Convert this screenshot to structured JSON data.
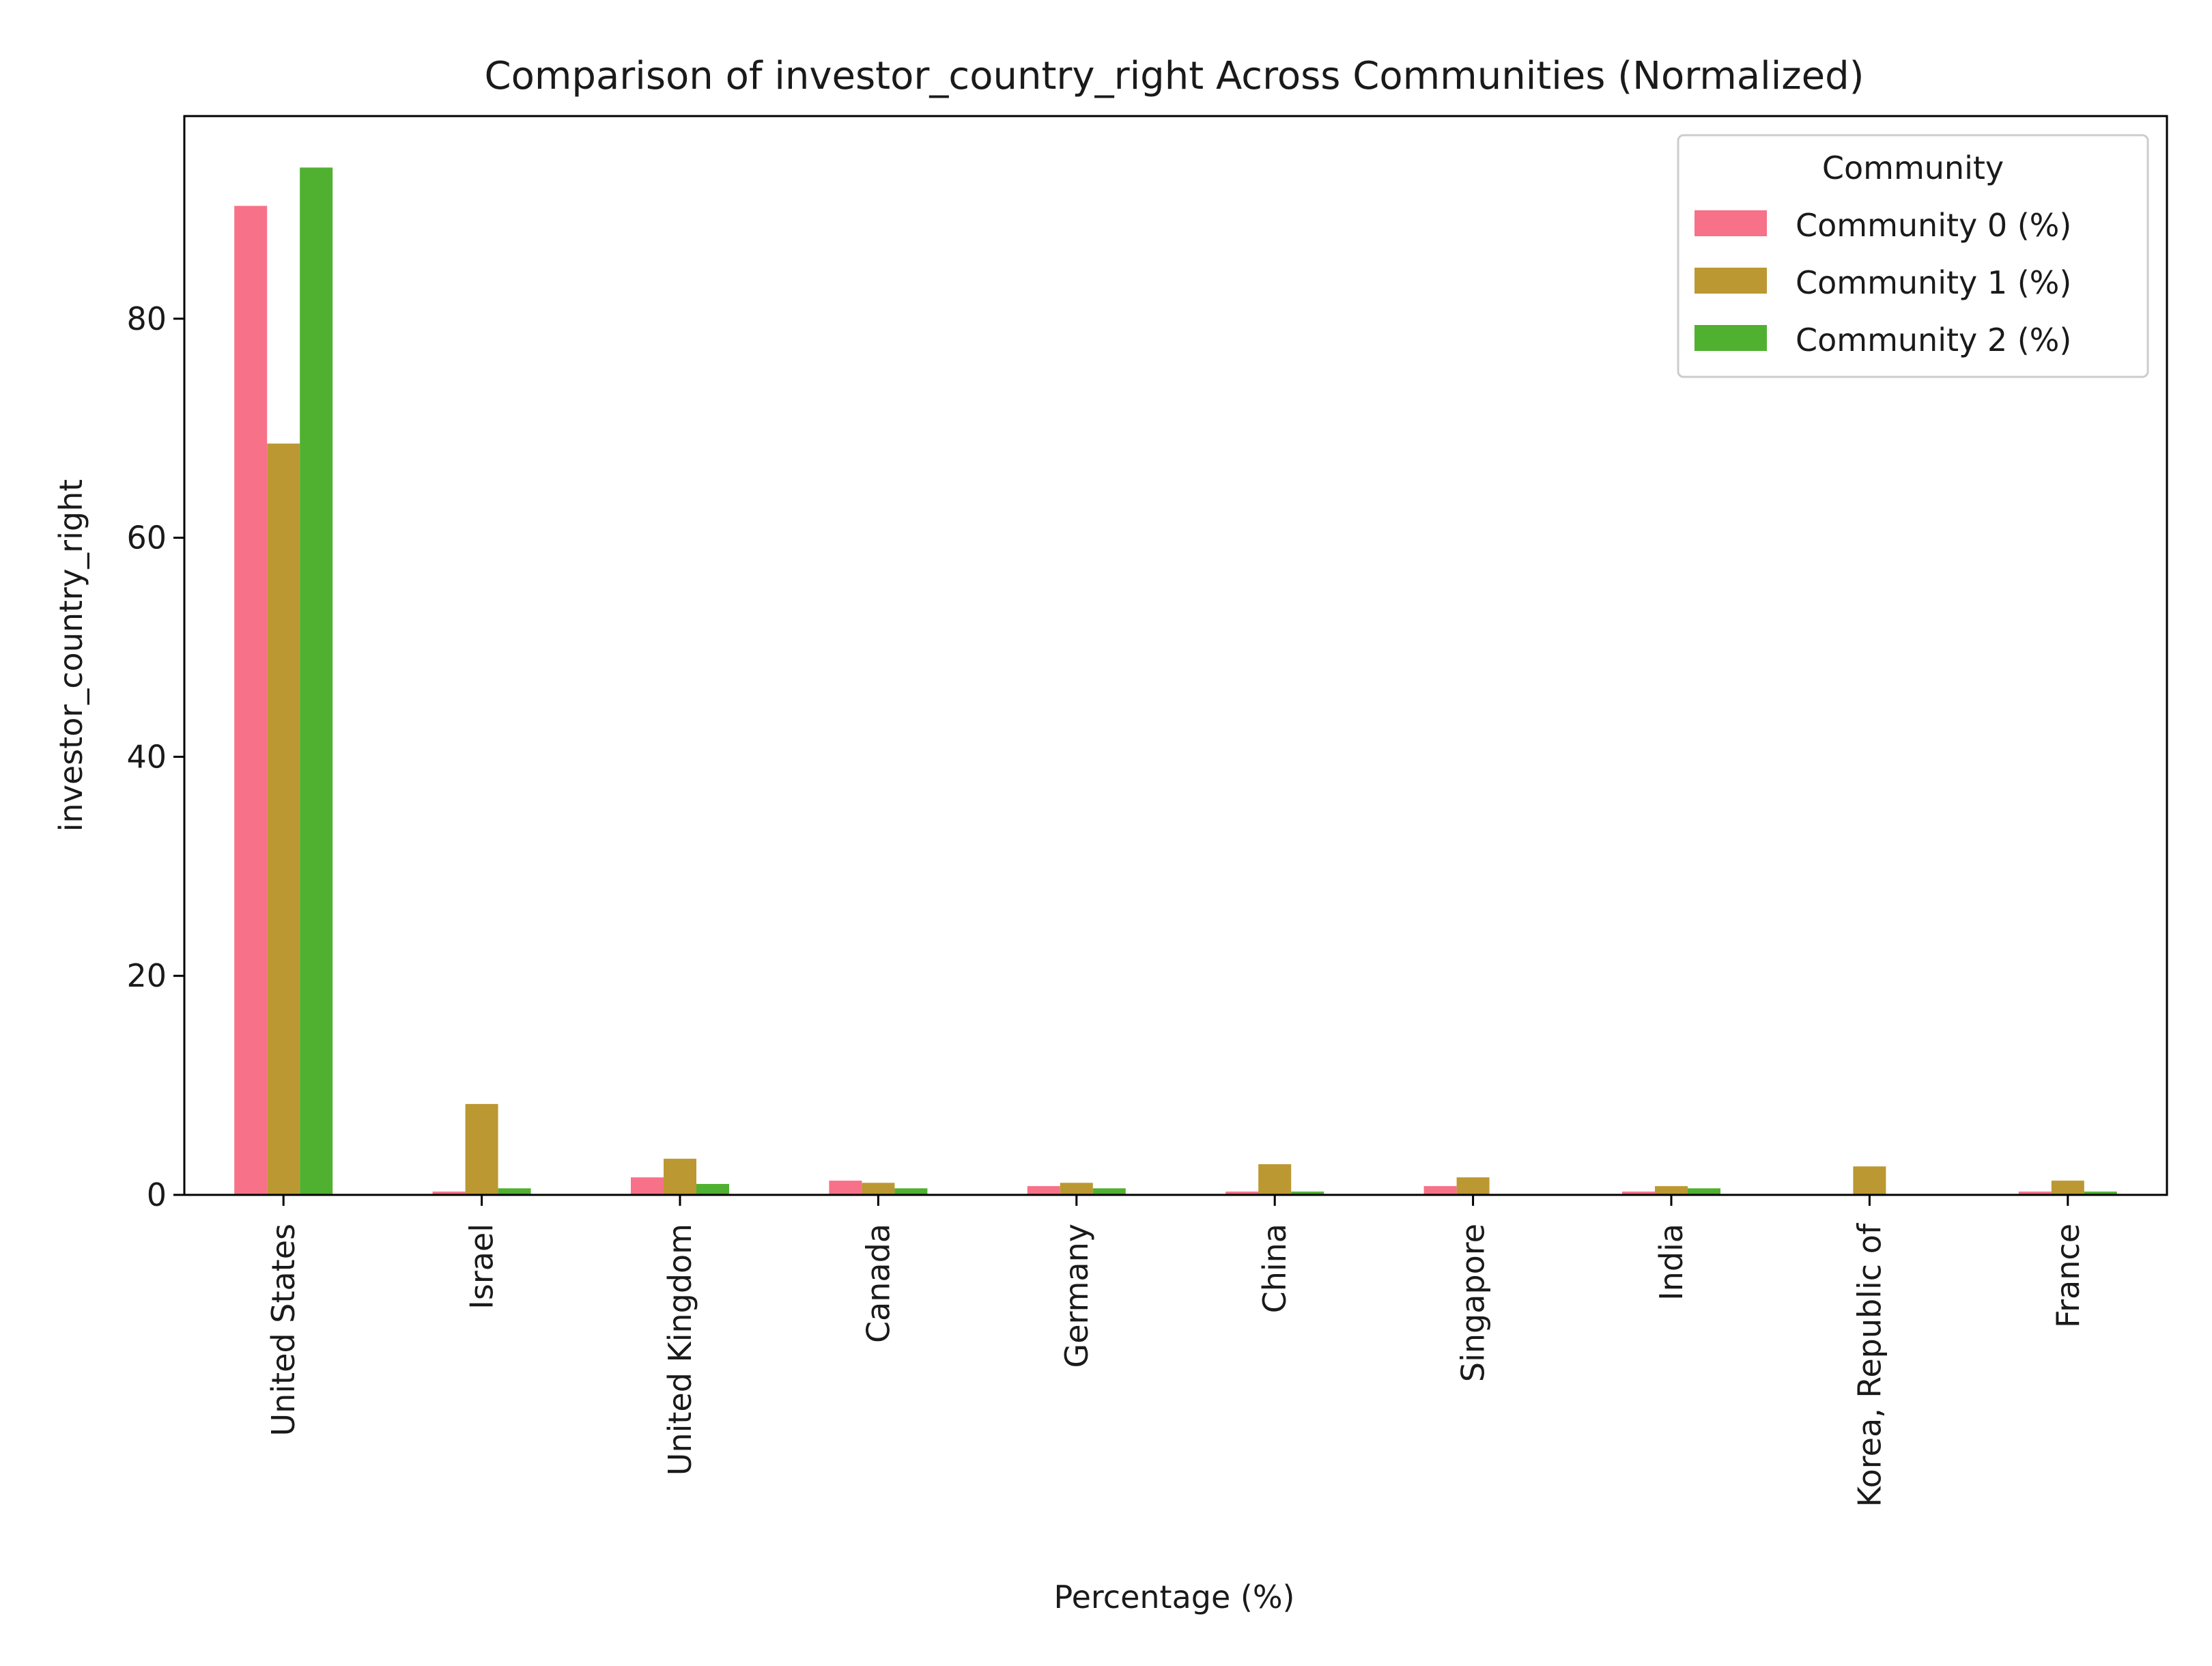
{
  "chart_data": {
    "type": "bar",
    "title": "Comparison of investor_country_right Across Communities (Normalized)",
    "xlabel": "Percentage (%)",
    "ylabel": "investor_country_right",
    "ylim": [
      0,
      98.5
    ],
    "yticks": [
      0,
      20,
      40,
      60,
      80
    ],
    "grid": false,
    "legend_title": "Community",
    "legend_position": "top-right",
    "categories": [
      "United States",
      "Israel",
      "United Kingdom",
      "Canada",
      "Germany",
      "China",
      "Singapore",
      "India",
      "Korea, Republic of",
      "France"
    ],
    "series": [
      {
        "name": "Community 0 (%)",
        "color": "#f77189",
        "values": [
          90.3,
          0.3,
          1.6,
          1.3,
          0.8,
          0.3,
          0.8,
          0.3,
          0.0,
          0.3
        ]
      },
      {
        "name": "Community 1 (%)",
        "color": "#bb9832",
        "values": [
          68.6,
          8.3,
          3.3,
          1.1,
          1.1,
          2.8,
          1.6,
          0.8,
          2.6,
          1.3
        ]
      },
      {
        "name": "Community 2 (%)",
        "color": "#50b131",
        "values": [
          93.8,
          0.6,
          1.0,
          0.6,
          0.6,
          0.3,
          0.0,
          0.6,
          0.0,
          0.3
        ]
      }
    ]
  }
}
